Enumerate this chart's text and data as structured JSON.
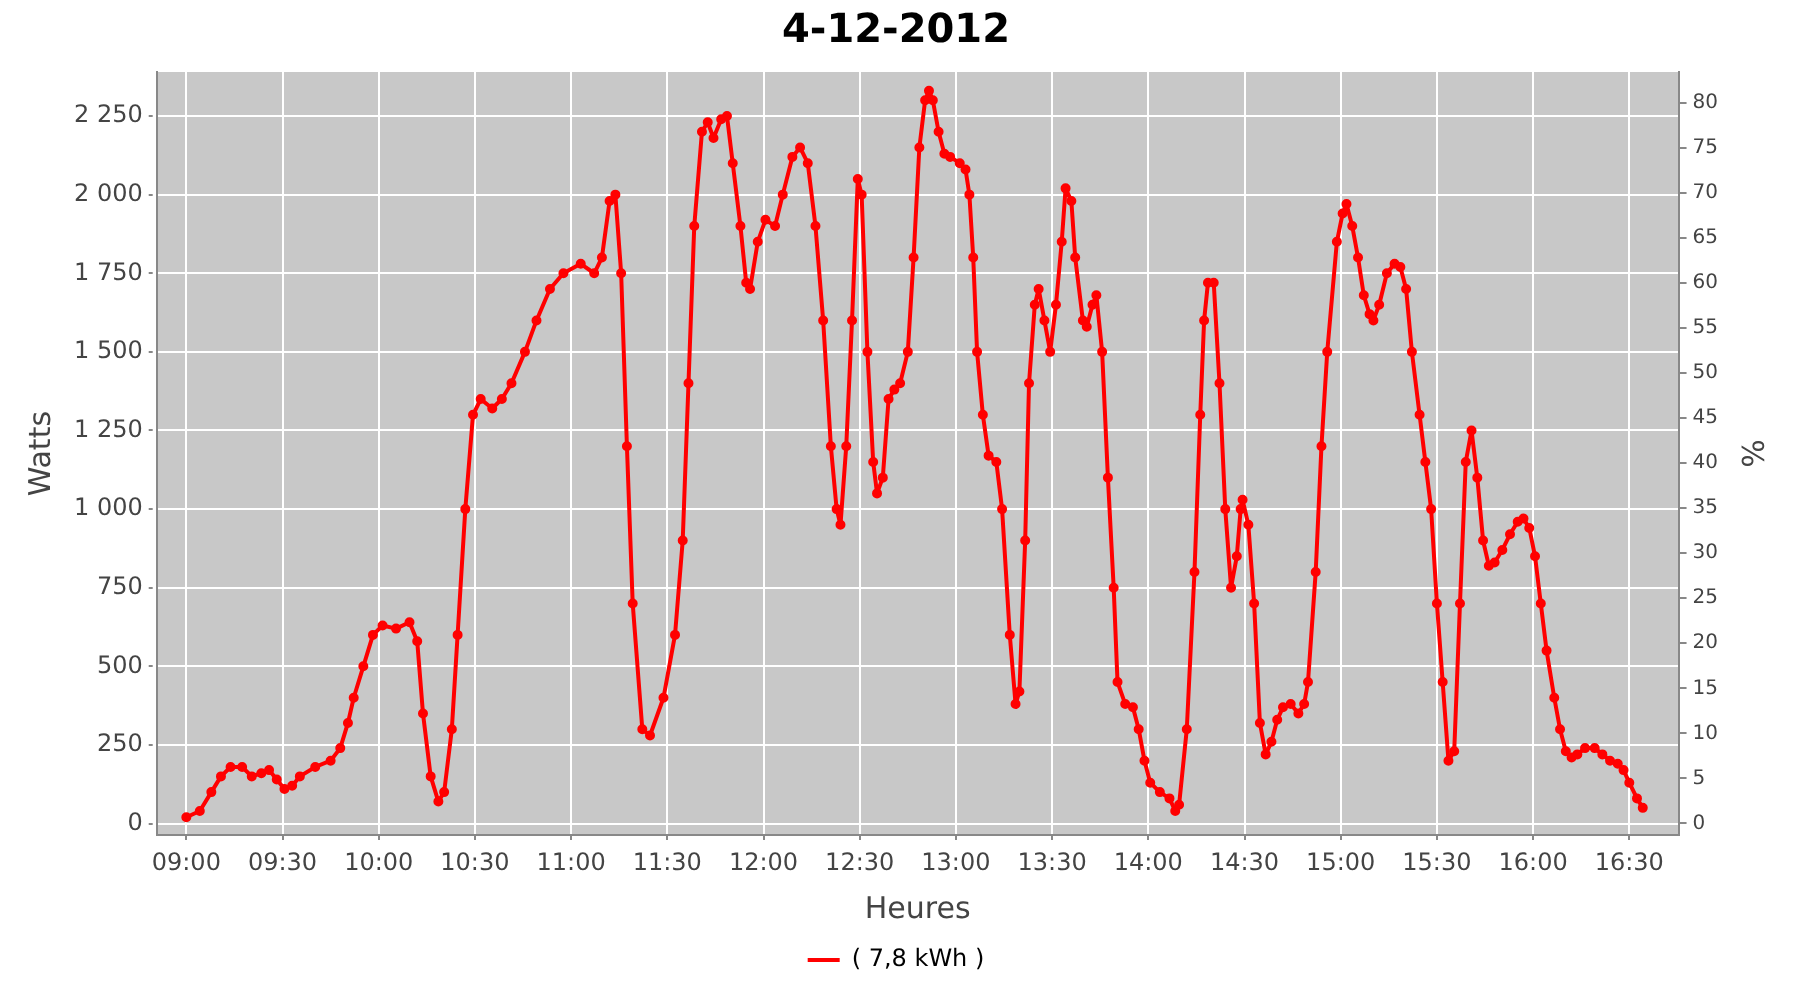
{
  "chart_data": {
    "type": "line",
    "title": "4-12-2012",
    "xlabel": "Heures",
    "ylabel": "Watts",
    "y2label": "%",
    "xlim": [
      8.846,
      16.756
    ],
    "xticks": [
      {
        "value": 9,
        "label": "09:00"
      },
      {
        "value": 9.5,
        "label": "09:30"
      },
      {
        "value": 10,
        "label": "10:00"
      },
      {
        "value": 10.5,
        "label": "10:30"
      },
      {
        "value": 11,
        "label": "11:00"
      },
      {
        "value": 11.5,
        "label": "11:30"
      },
      {
        "value": 12,
        "label": "12:00"
      },
      {
        "value": 12.5,
        "label": "12:30"
      },
      {
        "value": 13,
        "label": "13:00"
      },
      {
        "value": 13.5,
        "label": "13:30"
      },
      {
        "value": 14,
        "label": "14:00"
      },
      {
        "value": 14.5,
        "label": "14:30"
      },
      {
        "value": 15,
        "label": "15:00"
      },
      {
        "value": 15.5,
        "label": "15:30"
      },
      {
        "value": 16,
        "label": "16:00"
      },
      {
        "value": 16.5,
        "label": "16:30"
      }
    ],
    "ylim": [
      -37,
      2390
    ],
    "yticks": [
      0,
      {
        "value": 250,
        "label": "250"
      },
      {
        "value": 500,
        "label": "500"
      },
      {
        "value": 750,
        "label": "750"
      },
      {
        "value": 1000,
        "label": "1 000"
      },
      {
        "value": 1250,
        "label": "1 250"
      },
      {
        "value": 1500,
        "label": "1 500"
      },
      {
        "value": 1750,
        "label": "1 750"
      },
      {
        "value": 2000,
        "label": "2 000"
      },
      {
        "value": 2250,
        "label": "2 250"
      }
    ],
    "y2lim": [
      -1.3,
      83.4
    ],
    "y2ticks": [
      0,
      5,
      10,
      15,
      20,
      25,
      30,
      35,
      40,
      45,
      50,
      55,
      60,
      65,
      70,
      75,
      80
    ],
    "grid": true,
    "legend": "bottom",
    "marker": "circle",
    "line_style": "solid",
    "x": [
      9.0,
      9.07,
      9.13,
      9.18,
      9.23,
      9.29,
      9.34,
      9.39,
      9.43,
      9.47,
      9.51,
      9.55,
      9.59,
      9.67,
      9.75,
      9.8,
      9.84,
      9.87,
      9.92,
      9.97,
      10.02,
      10.09,
      10.16,
      10.2,
      10.23,
      10.27,
      10.31,
      10.34,
      10.38,
      10.41,
      10.45,
      10.49,
      10.53,
      10.59,
      10.64,
      10.69,
      10.76,
      10.82,
      10.89,
      10.96,
      11.05,
      11.12,
      11.16,
      11.2,
      11.23,
      11.26,
      11.29,
      11.32,
      11.37,
      11.41,
      11.48,
      11.54,
      11.58,
      11.61,
      11.64,
      11.68,
      11.71,
      11.74,
      11.78,
      11.81,
      11.84,
      11.88,
      11.91,
      11.93,
      11.97,
      12.01,
      12.06,
      12.1,
      12.15,
      12.19,
      12.23,
      12.27,
      12.31,
      12.35,
      12.38,
      12.4,
      12.43,
      12.46,
      12.49,
      12.51,
      12.54,
      12.57,
      12.59,
      12.62,
      12.65,
      12.68,
      12.71,
      12.75,
      12.78,
      12.81,
      12.84,
      12.86,
      12.88,
      12.91,
      12.94,
      12.97,
      13.02,
      13.05,
      13.07,
      13.09,
      13.11,
      13.14,
      13.17,
      13.21,
      13.24,
      13.28,
      13.31,
      13.33,
      13.36,
      13.38,
      13.41,
      13.43,
      13.46,
      13.49,
      13.52,
      13.55,
      13.57,
      13.6,
      13.62,
      13.66,
      13.68,
      13.71,
      13.73,
      13.76,
      13.79,
      13.82,
      13.84,
      13.88,
      13.92,
      13.95,
      13.98,
      14.01,
      14.06,
      14.11,
      14.14,
      14.16,
      14.2,
      14.24,
      14.27,
      14.29,
      14.31,
      14.34,
      14.37,
      14.4,
      14.43,
      14.46,
      14.48,
      14.49,
      14.52,
      14.55,
      14.58,
      14.61,
      14.64,
      14.67,
      14.7,
      14.74,
      14.78,
      14.81,
      14.83,
      14.87,
      14.9,
      14.93,
      14.98,
      15.01,
      15.03,
      15.06,
      15.09,
      15.12,
      15.15,
      15.17,
      15.2,
      15.24,
      15.28,
      15.31,
      15.34,
      15.37,
      15.41,
      15.44,
      15.47,
      15.5,
      15.53,
      15.56,
      15.59,
      15.62,
      15.65,
      15.68,
      15.71,
      15.74,
      15.77,
      15.8,
      15.84,
      15.88,
      15.92,
      15.95,
      15.98,
      16.01,
      16.04,
      16.07,
      16.11,
      16.14,
      16.17,
      16.2,
      16.23,
      16.27,
      16.32,
      16.36,
      16.4,
      16.44,
      16.47,
      16.5,
      16.54,
      16.57
    ],
    "series": [
      {
        "name": "( 7,8 kWh )",
        "color": "#ff0000",
        "values": [
          20,
          40,
          100,
          150,
          180,
          180,
          150,
          160,
          170,
          140,
          110,
          120,
          150,
          180,
          200,
          240,
          320,
          400,
          500,
          600,
          630,
          620,
          640,
          580,
          350,
          150,
          70,
          100,
          300,
          600,
          1000,
          1300,
          1350,
          1320,
          1350,
          1400,
          1500,
          1600,
          1700,
          1750,
          1780,
          1750,
          1800,
          1980,
          2000,
          1750,
          1200,
          700,
          300,
          280,
          400,
          600,
          900,
          1400,
          1900,
          2200,
          2230,
          2180,
          2240,
          2250,
          2100,
          1900,
          1720,
          1700,
          1850,
          1920,
          1900,
          2000,
          2120,
          2150,
          2100,
          1900,
          1600,
          1200,
          1000,
          950,
          1200,
          1600,
          2050,
          2000,
          1500,
          1150,
          1050,
          1100,
          1350,
          1380,
          1400,
          1500,
          1800,
          2150,
          2300,
          2330,
          2300,
          2200,
          2130,
          2120,
          2100,
          2080,
          2000,
          1800,
          1500,
          1300,
          1170,
          1150,
          1000,
          600,
          380,
          420,
          900,
          1400,
          1650,
          1700,
          1600,
          1500,
          1650,
          1850,
          2020,
          1980,
          1800,
          1600,
          1580,
          1650,
          1680,
          1500,
          1100,
          750,
          450,
          380,
          370,
          300,
          200,
          130,
          100,
          80,
          40,
          60,
          300,
          800,
          1300,
          1600,
          1720,
          1720,
          1400,
          1000,
          750,
          850,
          1000,
          1030,
          950,
          700,
          320,
          220,
          260,
          330,
          370,
          380,
          350,
          380,
          450,
          800,
          1200,
          1500,
          1850,
          1940,
          1970,
          1900,
          1800,
          1680,
          1620,
          1600,
          1650,
          1750,
          1780,
          1770,
          1700,
          1500,
          1300,
          1150,
          1000,
          700,
          450,
          200,
          230,
          700,
          1150,
          1250,
          1100,
          900,
          820,
          830,
          870,
          920,
          960,
          970,
          940,
          850,
          700,
          550,
          400,
          300,
          230,
          210,
          220,
          240,
          240,
          220,
          200,
          190,
          170,
          130,
          80,
          50
        ]
      }
    ]
  }
}
